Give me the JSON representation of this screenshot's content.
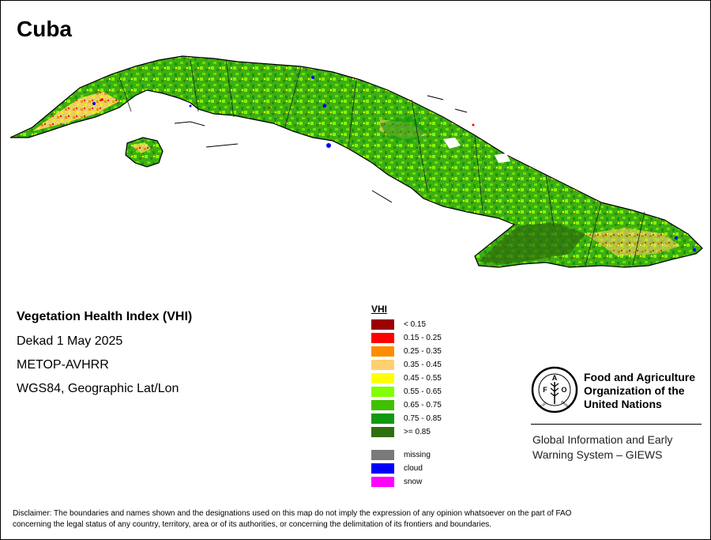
{
  "map": {
    "title": "Cuba",
    "product_title": "Vegetation Health Index (VHI)",
    "period": "Dekad 1 May 2025",
    "sensor": "METOP-AVHRR",
    "projection": "WGS84, Geographic Lat/Lon"
  },
  "legend": {
    "title": "VHI",
    "classes": [
      {
        "label": "< 0.15",
        "color": "#990000"
      },
      {
        "label": "0.15 - 0.25",
        "color": "#ff0000"
      },
      {
        "label": "0.25 - 0.35",
        "color": "#ff8c00"
      },
      {
        "label": "0.35 - 0.45",
        "color": "#ffd070"
      },
      {
        "label": "0.45 - 0.55",
        "color": "#ffff00"
      },
      {
        "label": "0.55 - 0.65",
        "color": "#80ff00"
      },
      {
        "label": "0.65 - 0.75",
        "color": "#40c000"
      },
      {
        "label": "0.75 - 0.85",
        "color": "#119911"
      },
      {
        "label": ">= 0.85",
        "color": "#2e6e0f"
      }
    ],
    "other": [
      {
        "label": "missing",
        "color": "#7a7a7a"
      },
      {
        "label": "cloud",
        "color": "#0000ff"
      },
      {
        "label": "snow",
        "color": "#ff00ff"
      }
    ]
  },
  "organization": {
    "name_line1": "Food and Agriculture",
    "name_line2": "Organization of the",
    "name_line3": "United Nations",
    "system_line1": "Global Information and Early",
    "system_line2": "Warning System – GIEWS",
    "logo_text": "FAO FIAT PANIS"
  },
  "disclaimer": {
    "line1": "Disclaimer: The boundaries and names shown and the designations used on this map do not imply the expression of any opinion whatsoever on the part of FAO",
    "line2": "concerning the legal status of any country, territory, area or of its authorities, or concerning the delimitation of its frontiers and boundaries."
  }
}
